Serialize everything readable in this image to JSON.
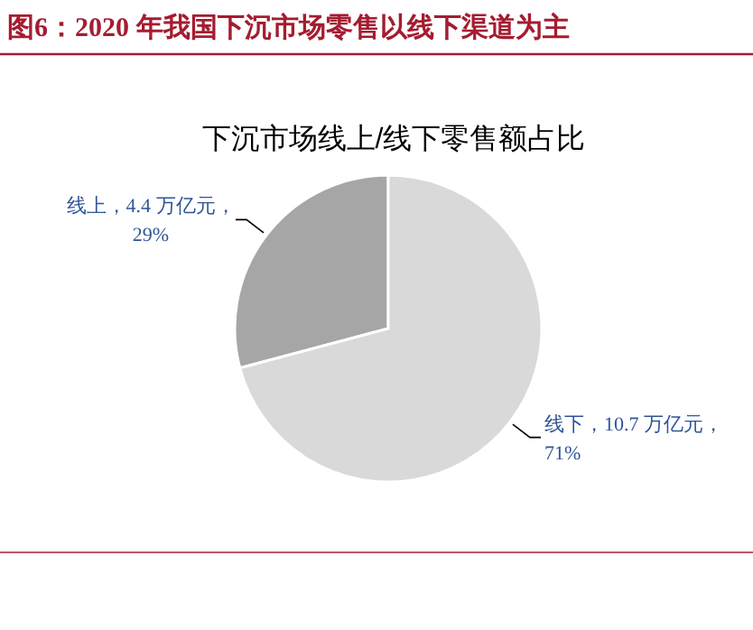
{
  "chart_data": {
    "type": "pie",
    "title": "图6：2020 年我国下沉市场零售以线下渠道为主",
    "subtitle": "下沉市场线上/线下零售额占比",
    "categories": [
      "线上，4.4 万亿元，29%",
      "线下，10.7 万亿元，71%"
    ],
    "values": [
      4.4,
      10.7
    ],
    "colors": [
      "#a6a6a6",
      "#d9d9d9"
    ]
  }
}
